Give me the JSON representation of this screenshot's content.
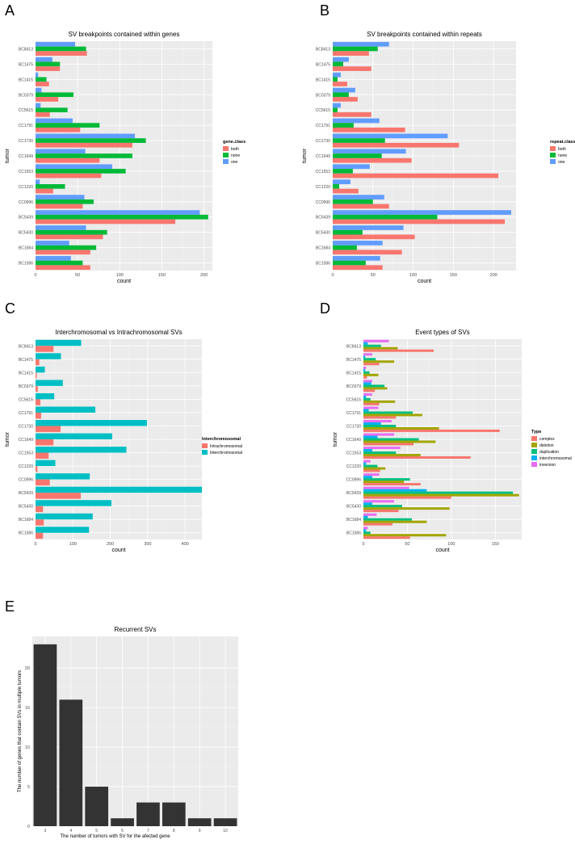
{
  "colors": {
    "panel_bg": "#ebebeb",
    "grid": "#ffffff",
    "both": "#f8766d",
    "none": "#00ba38",
    "one": "#619cff",
    "intra": "#f8766d",
    "inter": "#00bfc4",
    "complex": "#f8766d",
    "deletion": "#a3a500",
    "duplication": "#00bf7d",
    "interchromosomal": "#00b0f6",
    "inversion": "#e76bf3",
    "recurrent": "#333333"
  },
  "chart_data": [
    {
      "id": "A",
      "panel_letter": "A",
      "type": "bar",
      "orientation": "horizontal",
      "title": "SV breakpoints contained within genes",
      "xlabel": "count",
      "ylabel": "tumor",
      "xlim": [
        0,
        210
      ],
      "xticks": [
        "0",
        "50",
        "100",
        "150",
        "200"
      ],
      "xtick_values": [
        0,
        50,
        100,
        150,
        200
      ],
      "categories": [
        "BC8413",
        "BC1475",
        "BC1415",
        "BC0379",
        "CC5615",
        "CC1791",
        "CC1730",
        "CC1649",
        "CC1553",
        "CC1220",
        "CC0996",
        "BC5439",
        "BC5430",
        "BC1684",
        "BC1586"
      ],
      "legend": {
        "title": "gene.class",
        "position": "right",
        "entries": [
          "both",
          "none",
          "one"
        ]
      },
      "series": [
        {
          "name": "one",
          "color_key": "one",
          "values": [
            47,
            20,
            3,
            7,
            6,
            44,
            118,
            59,
            91,
            5,
            58,
            195,
            60,
            40,
            42
          ]
        },
        {
          "name": "none",
          "color_key": "none",
          "values": [
            60,
            29,
            13,
            45,
            38,
            76,
            131,
            115,
            107,
            35,
            69,
            205,
            85,
            72,
            56
          ]
        },
        {
          "name": "both",
          "color_key": "both",
          "values": [
            61,
            29,
            16,
            27,
            17,
            53,
            115,
            76,
            78,
            21,
            56,
            166,
            80,
            65,
            65
          ]
        }
      ]
    },
    {
      "id": "B",
      "panel_letter": "B",
      "type": "bar",
      "orientation": "horizontal",
      "title": "SV breakpoints contained within repeats",
      "xlabel": "count",
      "ylabel": "tumor",
      "xlim": [
        0,
        228
      ],
      "xticks": [
        "0",
        "50",
        "100",
        "150",
        "200"
      ],
      "xtick_values": [
        0,
        50,
        100,
        150,
        200
      ],
      "categories": [
        "BC8413",
        "BC1475",
        "BC1415",
        "BC0379",
        "CC5615",
        "CC1791",
        "CC1730",
        "CC1649",
        "CC1553",
        "CC1220",
        "CC0996",
        "BC5439",
        "BC5430",
        "BC1684",
        "BC1586"
      ],
      "legend": {
        "title": "repeat.class",
        "position": "right",
        "entries": [
          "both",
          "none",
          "one"
        ]
      },
      "series": [
        {
          "name": "one",
          "color_key": "one",
          "values": [
            70,
            20,
            10,
            28,
            10,
            58,
            143,
            91,
            46,
            22,
            64,
            222,
            88,
            62,
            59
          ]
        },
        {
          "name": "none",
          "color_key": "none",
          "values": [
            56,
            13,
            6,
            20,
            6,
            26,
            65,
            61,
            25,
            8,
            50,
            130,
            37,
            30,
            41
          ]
        },
        {
          "name": "both",
          "color_key": "both",
          "values": [
            45,
            48,
            18,
            31,
            48,
            90,
            157,
            98,
            206,
            32,
            70,
            214,
            102,
            86,
            62
          ]
        }
      ]
    },
    {
      "id": "C",
      "panel_letter": "C",
      "type": "bar",
      "orientation": "horizontal",
      "title": "Interchromosomal vs Intrachromosomal SVs",
      "xlabel": "count",
      "ylabel": "tumor",
      "xlim": [
        0,
        445
      ],
      "xticks": [
        "0",
        "100",
        "200",
        "300",
        "400"
      ],
      "xtick_values": [
        0,
        100,
        200,
        300,
        400
      ],
      "categories": [
        "BC8413",
        "BC1475",
        "BC1415",
        "BC0379",
        "CC5615",
        "CC1791",
        "CC1730",
        "CC1649",
        "CC1553",
        "CC1220",
        "CC0996",
        "BC5439",
        "BC5430",
        "BC1684",
        "BC1586"
      ],
      "legend": {
        "title": "Interchromosomal",
        "position": "right",
        "entries": [
          "Intrachromosomal",
          "Interchromosomal"
        ]
      },
      "series": [
        {
          "name": "Interchromosomal",
          "color_key": "inter",
          "values": [
            122,
            68,
            25,
            73,
            50,
            160,
            298,
            205,
            243,
            53,
            145,
            445,
            203,
            153,
            143
          ]
        },
        {
          "name": "Intrachromosomal",
          "color_key": "intra",
          "values": [
            48,
            10,
            3,
            6,
            13,
            15,
            67,
            48,
            35,
            5,
            38,
            121,
            20,
            22,
            20
          ]
        }
      ]
    },
    {
      "id": "D",
      "panel_letter": "D",
      "type": "bar",
      "orientation": "horizontal",
      "title": "Event types of SVs",
      "xlabel": "count",
      "ylabel": "tumor",
      "xlim": [
        0,
        180
      ],
      "xticks": [
        "0",
        "50",
        "100",
        "150"
      ],
      "xtick_values": [
        0,
        50,
        100,
        150
      ],
      "categories": [
        "BC8413",
        "BC1475",
        "BC1415",
        "BC0379",
        "CC5615",
        "CC1791",
        "CC1730",
        "CC1649",
        "CC1553",
        "CC1220",
        "CC0996",
        "BC5439",
        "BC5430",
        "BC1684",
        "BC1586"
      ],
      "legend": {
        "title": "Type",
        "position": "right",
        "entries": [
          "complex",
          "deletion",
          "duplication",
          "interchromosomal",
          "inversion"
        ]
      },
      "series": [
        {
          "name": "inversion",
          "color_key": "inversion",
          "values": [
            29,
            10,
            3,
            10,
            10,
            17,
            32,
            35,
            42,
            8,
            18,
            52,
            35,
            15,
            5
          ]
        },
        {
          "name": "interchromosomal",
          "color_key": "interchromosomal",
          "values": [
            5,
            2,
            2,
            9,
            3,
            6,
            20,
            16,
            10,
            3,
            10,
            72,
            10,
            5,
            3
          ]
        },
        {
          "name": "duplication",
          "color_key": "duplication",
          "values": [
            20,
            14,
            7,
            24,
            8,
            56,
            37,
            63,
            37,
            16,
            53,
            170,
            44,
            55,
            8
          ]
        },
        {
          "name": "deletion",
          "color_key": "deletion",
          "values": [
            39,
            35,
            17,
            27,
            36,
            67,
            86,
            82,
            65,
            25,
            46,
            177,
            98,
            72,
            94
          ]
        },
        {
          "name": "complex",
          "color_key": "complex",
          "values": [
            80,
            18,
            4,
            13,
            18,
            37,
            155,
            57,
            122,
            19,
            65,
            100,
            40,
            33,
            53
          ]
        }
      ]
    },
    {
      "id": "E",
      "panel_letter": "E",
      "type": "bar",
      "orientation": "vertical",
      "title": "Recurrent SVs",
      "xlabel": "The number of tumors with SV for the afected gene",
      "ylabel": "The number of genes that contain SVs in multiple tumors",
      "ylim": [
        0,
        24
      ],
      "yticks": [
        "0",
        "5",
        "10",
        "15",
        "20"
      ],
      "ytick_values": [
        0,
        5,
        10,
        15,
        20
      ],
      "categories": [
        "3",
        "4",
        "5",
        "6",
        "7",
        "8",
        "9",
        "10"
      ],
      "values": [
        23,
        16,
        5,
        1,
        3,
        3,
        1,
        1
      ]
    }
  ]
}
